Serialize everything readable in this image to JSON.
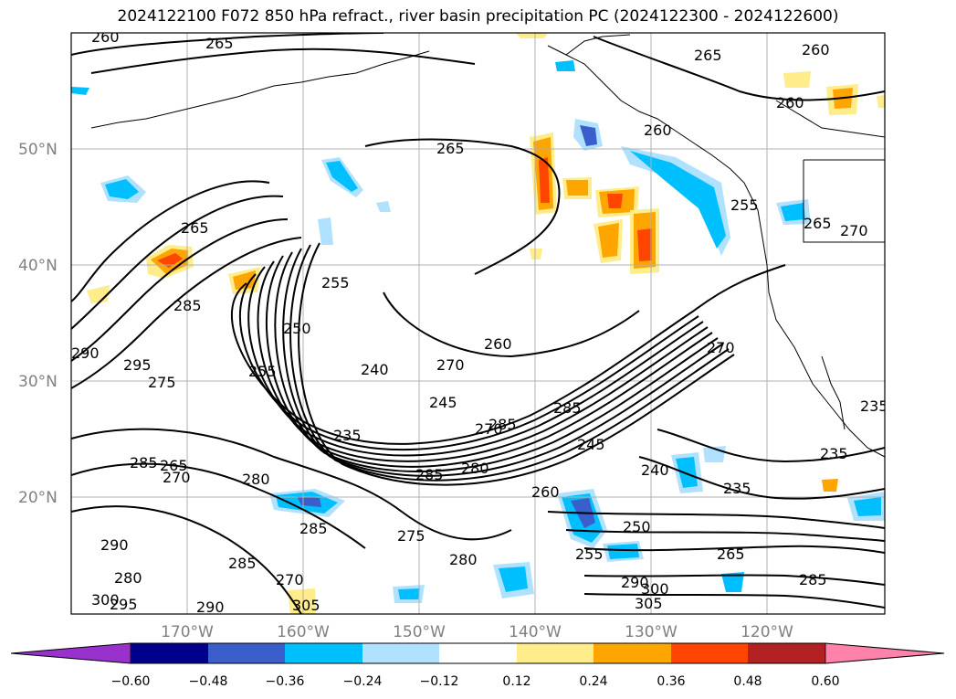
{
  "title": "2024122100 F072 850 hPa refract., river basin precipitation PC (2024122300 - 2024122600)",
  "lat_labels": [
    "50°N",
    "40°N",
    "30°N",
    "20°N"
  ],
  "lon_labels": [
    "170°W",
    "160°W",
    "150°W",
    "140°W",
    "130°W",
    "120°W"
  ],
  "colorbar": {
    "ticks": [
      "−0.60",
      "−0.48",
      "−0.36",
      "−0.24",
      "−0.12",
      "0.12",
      "0.24",
      "0.36",
      "0.48",
      "0.60"
    ],
    "colors": [
      "#9932cc",
      "#00008b",
      "#3a5fcd",
      "#00bfff",
      "#b0e2ff",
      "#ffffff",
      "#ffec8b",
      "#ffa500",
      "#ff4500",
      "#b22222",
      "#ff82ab"
    ]
  },
  "contour_labels": [
    "260",
    "265",
    "265",
    "265",
    "265",
    "260",
    "260",
    "260",
    "260",
    "255",
    "255",
    "250",
    "255",
    "270",
    "285",
    "290",
    "295",
    "275",
    "240",
    "270",
    "245",
    "235",
    "265",
    "265",
    "270",
    "285",
    "280",
    "285",
    "280",
    "260",
    "285",
    "290",
    "280",
    "285",
    "300",
    "295",
    "290",
    "270",
    "275",
    "280",
    "255",
    "250",
    "265",
    "290",
    "300",
    "305",
    "285",
    "240",
    "235",
    "235",
    "235",
    "270",
    "270",
    "245",
    "285",
    "285",
    "305"
  ]
}
